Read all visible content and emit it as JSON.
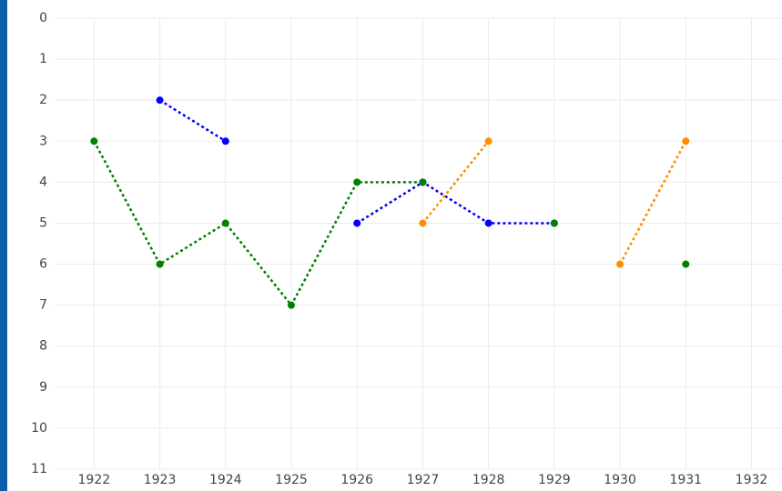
{
  "chart_data": {
    "type": "line",
    "x": [
      1922,
      1923,
      1924,
      1925,
      1926,
      1927,
      1928,
      1929,
      1930,
      1931,
      1932
    ],
    "series": [
      {
        "color": "#0000ff",
        "values": [
          null,
          2,
          3,
          null,
          5,
          4,
          5,
          5,
          null,
          null,
          null
        ]
      },
      {
        "color": "#ff8c00",
        "values": [
          null,
          null,
          null,
          null,
          null,
          5,
          3,
          null,
          6,
          3,
          null
        ]
      },
      {
        "color": "#008000",
        "values": [
          3,
          6,
          5,
          7,
          4,
          4,
          null,
          5,
          null,
          6,
          null
        ]
      }
    ],
    "xlim": [
      1921.4,
      1932.45
    ],
    "xticks": [
      1922,
      1923,
      1924,
      1925,
      1926,
      1927,
      1928,
      1929,
      1930,
      1931,
      1932
    ],
    "ylim": [
      0,
      11
    ],
    "yticks": [
      0,
      1,
      2,
      3,
      4,
      5,
      6,
      7,
      8,
      9,
      10,
      11
    ],
    "y_reversed": true,
    "grid": true,
    "line_style": "dotted"
  }
}
